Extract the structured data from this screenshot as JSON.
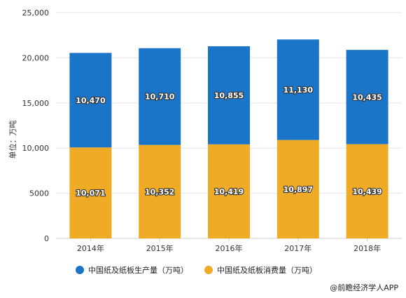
{
  "chart_data": {
    "type": "bar",
    "stacked": true,
    "categories": [
      "2014年",
      "2015年",
      "2016年",
      "2017年",
      "2018年"
    ],
    "series": [
      {
        "name": "中国纸及纸板消费量（万吨）",
        "color": "#F0AB26",
        "values": [
          10071,
          10352,
          10419,
          10897,
          10439
        ],
        "labels": [
          "10,071",
          "10,352",
          "10,419",
          "10,897",
          "10,439"
        ]
      },
      {
        "name": "中国纸及纸板生产量（万吨）",
        "color": "#1A74C8",
        "values": [
          10470,
          10710,
          10855,
          11130,
          10435
        ],
        "labels": [
          "10,470",
          "10,710",
          "10,855",
          "11,130",
          "10,435"
        ]
      }
    ],
    "ylabel": "单位：万吨",
    "xlabel": "",
    "ylim": [
      0,
      25000
    ],
    "yticks": [
      0,
      5000,
      10000,
      15000,
      20000,
      25000
    ],
    "ytick_labels": [
      "0",
      "5000",
      "10,000",
      "15,000",
      "20,000",
      "25,000"
    ],
    "grid": true,
    "legend_position": "bottom",
    "legend_order": [
      1,
      0
    ]
  },
  "credit": "@前瞻经济学人APP"
}
